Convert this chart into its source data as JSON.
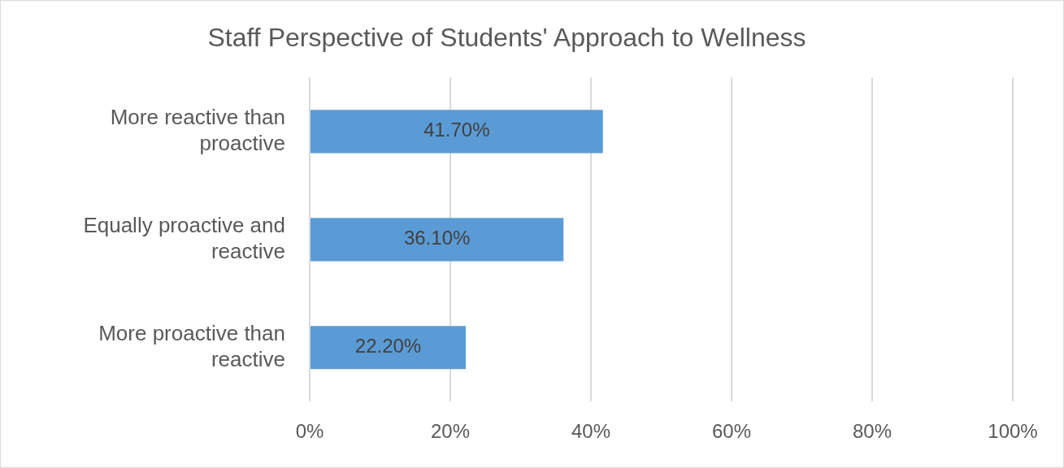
{
  "chart_data": {
    "type": "bar",
    "orientation": "horizontal",
    "title": "Staff Perspective of Students' Approach to Wellness",
    "categories": [
      "More reactive than proactive",
      "Equally proactive and reactive",
      "More proactive than reactive"
    ],
    "values": [
      41.7,
      36.1,
      22.2
    ],
    "color": "#5b9bd5",
    "value_labels": [
      "41.70%",
      "36.10%",
      "22.20%"
    ],
    "xlim": [
      0,
      100
    ],
    "xticks": [
      {
        "value": 0,
        "label": "0%"
      },
      {
        "value": 20,
        "label": "20%"
      },
      {
        "value": 40,
        "label": "40%"
      },
      {
        "value": 60,
        "label": "60%"
      },
      {
        "value": 80,
        "label": "80%"
      },
      {
        "value": 100,
        "label": "100%"
      }
    ],
    "grid": "x",
    "legend": false
  }
}
